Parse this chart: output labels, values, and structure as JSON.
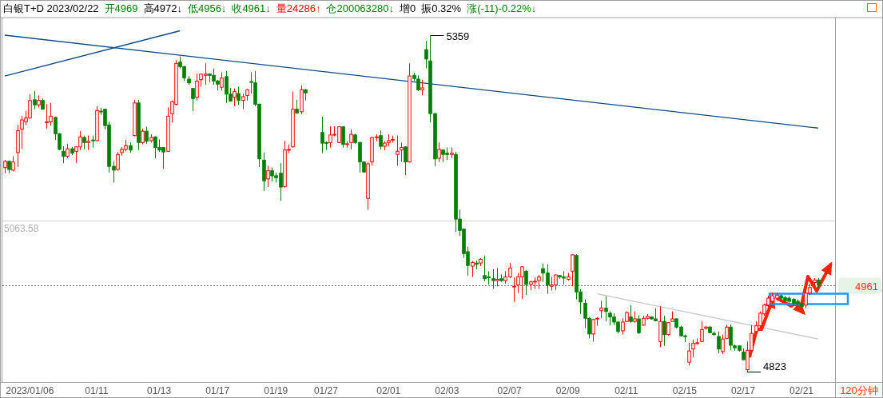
{
  "chart_data": {
    "type": "candlestick",
    "title": "白银T+D 2023/02/22",
    "categories": [
      null,
      null,
      null,
      null,
      null,
      null,
      "2023/01/06",
      null,
      null,
      null,
      null,
      null,
      null,
      null,
      null,
      null,
      null,
      null,
      null,
      null,
      null,
      null,
      "01/11",
      null,
      null,
      null,
      null,
      null,
      null,
      null,
      null,
      null,
      null,
      null,
      null,
      null,
      null,
      "01/13",
      null,
      null,
      null,
      null,
      null,
      null,
      null,
      null,
      null,
      null,
      null,
      null,
      null,
      "01/17",
      null,
      null,
      null,
      null,
      null,
      null,
      null,
      null,
      null,
      null,
      null,
      null,
      null,
      "01/19",
      null,
      null,
      null,
      null,
      null,
      null,
      null,
      null,
      null,
      null,
      null,
      "01/27",
      null,
      null,
      null,
      null,
      null,
      null,
      null,
      null,
      null,
      null,
      null,
      null,
      null,
      null,
      "02/01",
      null,
      null,
      null,
      null,
      null,
      null,
      null,
      null,
      null,
      null,
      null,
      null,
      null,
      "02/03",
      null,
      null,
      null,
      null,
      null,
      null,
      null,
      null,
      null,
      null,
      null,
      null,
      null,
      null,
      "02/07",
      null,
      null,
      null,
      null,
      null,
      null,
      null,
      null,
      null,
      null,
      null,
      null,
      null,
      "02/09",
      null,
      null,
      null,
      null,
      null,
      null,
      null,
      null,
      null,
      null,
      null,
      null,
      null,
      "02/11",
      null,
      null,
      null,
      null,
      null,
      null,
      null,
      null,
      null,
      null,
      null,
      null,
      null,
      "02/15",
      null,
      null,
      null,
      null,
      null,
      null,
      null,
      null,
      null,
      null,
      null,
      null,
      null,
      "02/17",
      null,
      null,
      null,
      null,
      null,
      null,
      null,
      null,
      null,
      null,
      null,
      null,
      null,
      "02/21",
      null,
      null,
      null,
      null
    ],
    "ohlc": [
      [
        5148,
        5160,
        5139,
        5158
      ],
      [
        5158,
        5159,
        5139,
        5145
      ],
      [
        5144,
        5166,
        5142,
        5157
      ],
      [
        5172,
        5216,
        5149,
        5207
      ],
      [
        5209,
        5230,
        5178,
        5224
      ],
      [
        5221,
        5238,
        5216,
        5227
      ],
      [
        5227,
        5265,
        5226,
        5255
      ],
      [
        5256,
        5270,
        5241,
        5248
      ],
      [
        5248,
        5263,
        5244,
        5255
      ],
      [
        5255,
        5258,
        5241,
        5241
      ],
      [
        5220,
        5249,
        5210,
        5221
      ],
      [
        5221,
        5251,
        5215,
        5230
      ],
      [
        5228,
        5229,
        5192,
        5202
      ],
      [
        5202,
        5203,
        5176,
        5177
      ],
      [
        5174,
        5182,
        5155,
        5166
      ],
      [
        5166,
        5186,
        5163,
        5178
      ],
      [
        5178,
        5181,
        5168,
        5171
      ],
      [
        5174,
        5182,
        5155,
        5181
      ],
      [
        5181,
        5206,
        5176,
        5197
      ],
      [
        5196,
        5199,
        5177,
        5188
      ],
      [
        5188,
        5199,
        5176,
        5190
      ],
      [
        5192,
        5199,
        5180,
        5191
      ],
      [
        5191,
        5246,
        5190,
        5239
      ],
      [
        5238,
        5243,
        5232,
        5237
      ],
      [
        5241,
        5242,
        5209,
        5215
      ],
      [
        5216,
        5221,
        5140,
        5150
      ],
      [
        5150,
        5158,
        5124,
        5144
      ],
      [
        5145,
        5173,
        5143,
        5169
      ],
      [
        5172,
        5181,
        5167,
        5177
      ],
      [
        5177,
        5192,
        5174,
        5183
      ],
      [
        5183,
        5188,
        5172,
        5176
      ],
      [
        5199,
        5256,
        5198,
        5251
      ],
      [
        5251,
        5256,
        5176,
        5188
      ],
      [
        5188,
        5210,
        5185,
        5206
      ],
      [
        5206,
        5213,
        5186,
        5190
      ],
      [
        5191,
        5201,
        5188,
        5196
      ],
      [
        5197,
        5198,
        5163,
        5180
      ],
      [
        5180,
        5193,
        5173,
        5176
      ],
      [
        5180,
        5181,
        5146,
        5173
      ],
      [
        5174,
        5244,
        5173,
        5230
      ],
      [
        5234,
        5255,
        5220,
        5253
      ],
      [
        5249,
        5319,
        5247,
        5314
      ],
      [
        5316,
        5325,
        5306,
        5309
      ],
      [
        5309,
        5310,
        5286,
        5291
      ],
      [
        5289,
        5294,
        5280,
        5283
      ],
      [
        5274,
        5275,
        5238,
        5258
      ],
      [
        5260,
        5298,
        5255,
        5286
      ],
      [
        5288,
        5297,
        5277,
        5297
      ],
      [
        5295,
        5314,
        5280,
        5297
      ],
      [
        5297,
        5298,
        5284,
        5295
      ],
      [
        5295,
        5306,
        5280,
        5286
      ],
      [
        5286,
        5288,
        5271,
        5281
      ],
      [
        5276,
        5300,
        5271,
        5291
      ],
      [
        5293,
        5302,
        5251,
        5265
      ],
      [
        5265,
        5275,
        5253,
        5254
      ],
      [
        5260,
        5274,
        5246,
        5269
      ],
      [
        5266,
        5277,
        5248,
        5255
      ],
      [
        5255,
        5266,
        5241,
        5261
      ],
      [
        5263,
        5273,
        5255,
        5272
      ],
      [
        5285,
        5300,
        5266,
        5284
      ],
      [
        5283,
        5302,
        5246,
        5249
      ],
      [
        5249,
        5250,
        5149,
        5162
      ],
      [
        5160,
        5172,
        5111,
        5127
      ],
      [
        5130,
        5151,
        5117,
        5143
      ],
      [
        5143,
        5148,
        5126,
        5135
      ],
      [
        5135,
        5140,
        5124,
        5132
      ],
      [
        5139,
        5155,
        5095,
        5117
      ],
      [
        5118,
        5191,
        5116,
        5176
      ],
      [
        5176,
        5185,
        5171,
        5177
      ],
      [
        5181,
        5269,
        5180,
        5241
      ],
      [
        5241,
        5256,
        5234,
        5235
      ],
      [
        5237,
        5279,
        5233,
        5272
      ],
      [
        5272,
        5273,
        5255,
        5267
      ],
      null,
      null,
      null,
      [
        5204,
        5229,
        5171,
        5187
      ],
      [
        5188,
        5190,
        5176,
        5187
      ],
      [
        5188,
        5214,
        5180,
        5200
      ],
      [
        5200,
        5214,
        5198,
        5201
      ],
      [
        5188,
        5214,
        5187,
        5213
      ],
      [
        5213,
        5214,
        5180,
        5185
      ],
      [
        5185,
        5190,
        5180,
        5186
      ],
      [
        5188,
        5209,
        5177,
        5201
      ],
      [
        5200,
        5202,
        5186,
        5188
      ],
      [
        5188,
        5189,
        5140,
        5157
      ],
      [
        5157,
        5158,
        5140,
        5141
      ],
      [
        5099,
        5157,
        5081,
        5154
      ],
      [
        5157,
        5197,
        5151,
        5196
      ],
      [
        5196,
        5201,
        5190,
        5197
      ],
      [
        5199,
        5207,
        5177,
        5182
      ],
      [
        5182,
        5190,
        5176,
        5187
      ],
      [
        5188,
        5201,
        5182,
        5191
      ],
      [
        5192,
        5199,
        5188,
        5193
      ],
      [
        5169,
        5199,
        5151,
        5174
      ],
      [
        5176,
        5188,
        5157,
        5180
      ],
      [
        5181,
        5182,
        5136,
        5157
      ],
      [
        5157,
        5314,
        5156,
        5294
      ],
      [
        5295,
        5299,
        5286,
        5290
      ],
      [
        5289,
        5295,
        5270,
        5272
      ],
      [
        5272,
        5288,
        5263,
        5275
      ],
      [
        5336,
        5350,
        5306,
        5321
      ],
      [
        5318,
        5359,
        5220,
        5234
      ],
      [
        5234,
        5235,
        5150,
        5162
      ],
      [
        5163,
        5188,
        5157,
        5177
      ],
      [
        5176,
        5177,
        5157,
        5169
      ],
      [
        5171,
        5180,
        5160,
        5169
      ],
      [
        5169,
        5180,
        5163,
        5171
      ],
      [
        5169,
        5173,
        5046,
        5066
      ],
      [
        5066,
        5081,
        5039,
        5048
      ],
      [
        5050,
        5051,
        5004,
        5011
      ],
      [
        5014,
        5022,
        4976,
        4992
      ],
      [
        4991,
        4999,
        4974,
        4997
      ],
      [
        4996,
        5000,
        4986,
        4994
      ],
      [
        4996,
        5004,
        4991,
        5002
      ],
      [
        4976,
        5008,
        4967,
        4971
      ],
      [
        4974,
        4983,
        4962,
        4973
      ],
      [
        4971,
        4986,
        4955,
        4968
      ],
      [
        4968,
        4988,
        4959,
        4970
      ],
      [
        4971,
        4978,
        4966,
        4968
      ],
      [
        4968,
        4983,
        4963,
        4974
      ],
      [
        4974,
        4996,
        4972,
        4988
      ],
      [
        4958,
        4973,
        4934,
        4959
      ],
      [
        4961,
        4980,
        4948,
        4974
      ],
      [
        4974,
        4991,
        4939,
        4990
      ],
      [
        4983,
        4985,
        4945,
        4962
      ],
      [
        4962,
        4968,
        4953,
        4966
      ],
      [
        4966,
        4973,
        4955,
        4967
      ],
      [
        4968,
        4977,
        4955,
        4974
      ],
      [
        4987,
        4995,
        4966,
        4980
      ],
      [
        4980,
        4994,
        4947,
        4961
      ],
      [
        4959,
        4974,
        4952,
        4961
      ],
      [
        4961,
        4978,
        4953,
        4977
      ],
      [
        4976,
        4977,
        4971,
        4974
      ],
      [
        4974,
        4983,
        4962,
        4972
      ],
      [
        4970,
        4980,
        4968,
        4974
      ],
      [
        4983,
        5010,
        4959,
        5009
      ],
      [
        5008,
        5010,
        4938,
        4950
      ],
      [
        4950,
        4954,
        4915,
        4934
      ],
      [
        4932,
        4938,
        4892,
        4908
      ],
      [
        4908,
        4910,
        4876,
        4883
      ],
      [
        4883,
        4907,
        4871,
        4906
      ],
      [
        4907,
        4910,
        4896,
        4908
      ],
      [
        4920,
        4936,
        4908,
        4924
      ],
      [
        4924,
        4943,
        4903,
        4919
      ],
      [
        4916,
        4919,
        4897,
        4910
      ],
      [
        4910,
        4916,
        4897,
        4902
      ],
      [
        4902,
        4903,
        4884,
        4887
      ],
      [
        4888,
        4908,
        4882,
        4902
      ],
      [
        4903,
        4919,
        4902,
        4917
      ],
      [
        4910,
        4929,
        4901,
        4903
      ],
      [
        4903,
        4919,
        4901,
        4907
      ],
      [
        4907,
        4913,
        4883,
        4885
      ],
      [
        4897,
        4912,
        4896,
        4908
      ],
      [
        4908,
        4915,
        4906,
        4911
      ],
      [
        4910,
        4911,
        4906,
        4907
      ],
      [
        4907,
        4924,
        4903,
        4904
      ],
      [
        4871,
        4927,
        4862,
        4903
      ],
      [
        4903,
        4912,
        4864,
        4882
      ],
      [
        4882,
        4902,
        4880,
        4901
      ],
      [
        4903,
        4919,
        4902,
        4907
      ],
      [
        4907,
        4908,
        4892,
        4894
      ],
      [
        4894,
        4896,
        4879,
        4880
      ],
      [
        4880,
        4882,
        4870,
        4879
      ],
      [
        4838,
        4869,
        4833,
        4856
      ],
      [
        4859,
        4874,
        4846,
        4868
      ],
      [
        4868,
        4876,
        4866,
        4869
      ],
      [
        4871,
        4903,
        4870,
        4890
      ],
      [
        4892,
        4896,
        4890,
        4894
      ],
      [
        4894,
        4896,
        4884,
        4885
      ],
      [
        4884,
        4887,
        4880,
        4882
      ],
      [
        4879,
        4887,
        4852,
        4859
      ],
      [
        4855,
        4882,
        4851,
        4875
      ],
      [
        4876,
        4897,
        4875,
        4894
      ],
      [
        4894,
        4898,
        4857,
        4865
      ],
      [
        4864,
        4866,
        4856,
        4861
      ],
      [
        4864,
        4865,
        4855,
        4857
      ],
      [
        4854,
        4860,
        4841,
        4842
      ],
      [
        4826,
        4871,
        4823,
        4857
      ],
      [
        4857,
        4897,
        4855,
        4884
      ],
      [
        4887,
        4903,
        4884,
        4896
      ],
      [
        4896,
        4919,
        4893,
        4916
      ],
      [
        4915,
        4931,
        4912,
        4929
      ],
      [
        4929,
        4944,
        4926,
        4940
      ],
      [
        4935,
        4949,
        4931,
        4944
      ],
      [
        4940,
        4949,
        4936,
        4945
      ],
      [
        4944,
        4946,
        4938,
        4940
      ],
      [
        4941,
        4944,
        4934,
        4936
      ],
      [
        4940,
        4943,
        4931,
        4935
      ],
      [
        4938,
        4940,
        4929,
        4932
      ],
      [
        4935,
        4938,
        4926,
        4931
      ],
      [
        4932,
        4936,
        4924,
        4927
      ],
      [
        4929,
        4953,
        4924,
        4948
      ],
      [
        4948,
        4963,
        4945,
        4957
      ],
      [
        4965,
        4972,
        4960,
        4969
      ],
      [
        4969,
        4972,
        4956,
        4961
      ]
    ],
    "series": [
      {
        "type": "line",
        "color": "#0a4a8a",
        "values": [
          5294,
          null,
          null,
          null,
          null,
          null,
          null,
          null,
          null,
          null,
          null,
          null,
          null,
          null,
          null,
          null,
          null,
          null,
          null,
          null,
          null,
          null,
          null,
          null,
          null,
          null,
          null,
          null,
          null,
          null,
          null,
          null,
          null,
          null,
          null,
          null,
          null,
          null,
          null,
          null,
          null,
          null,
          5366,
          null,
          null,
          null,
          null,
          null,
          null,
          null,
          null,
          null,
          null,
          null,
          null,
          null,
          null,
          null,
          null,
          null,
          null,
          null,
          null,
          null,
          null,
          null,
          null,
          null,
          null,
          null,
          null,
          null,
          null,
          null,
          null,
          null,
          null,
          null,
          null,
          null,
          null,
          null,
          null,
          null,
          null,
          null,
          null,
          null,
          null,
          null,
          null,
          null,
          null,
          null,
          null,
          null,
          null,
          null,
          null,
          null,
          null,
          null,
          null,
          null,
          null,
          null,
          null,
          null,
          null,
          null,
          null,
          null,
          null,
          null,
          null,
          null,
          null,
          null,
          null,
          null,
          null,
          null,
          null,
          null,
          null,
          null,
          null,
          null,
          null,
          null,
          null,
          null,
          null,
          null,
          null,
          null,
          null,
          null,
          null,
          null,
          null,
          null,
          null,
          null,
          null,
          null,
          null,
          null,
          null,
          null,
          null,
          null,
          null,
          null,
          null,
          null,
          null,
          null,
          null,
          null,
          null,
          null,
          null,
          null,
          null,
          null,
          null,
          null,
          null,
          null,
          null,
          null,
          null,
          null,
          null,
          null,
          null,
          null,
          null,
          null,
          null,
          null,
          null,
          null,
          null,
          null,
          null,
          null,
          null,
          null,
          null,
          null,
          null,
          null,
          null,
          null
        ]
      },
      {
        "type": "line",
        "color": "#0a4a8a",
        "values": [
          5359,
          null,
          null,
          null,
          null,
          null,
          null,
          null,
          null,
          null,
          null,
          null,
          null,
          null,
          null,
          null,
          null,
          null,
          null,
          null,
          null,
          null,
          null,
          null,
          null,
          null,
          null,
          null,
          null,
          null,
          null,
          null,
          null,
          null,
          null,
          null,
          null,
          null,
          null,
          null,
          null,
          null,
          null,
          null,
          null,
          null,
          null,
          null,
          null,
          null,
          null,
          null,
          null,
          null,
          null,
          null,
          null,
          null,
          null,
          null,
          null,
          null,
          null,
          null,
          null,
          null,
          null,
          null,
          null,
          null,
          null,
          null,
          null,
          null,
          null,
          null,
          null,
          null,
          null,
          null,
          null,
          null,
          null,
          null,
          null,
          null,
          null,
          null,
          null,
          null,
          null,
          null,
          null,
          null,
          null,
          null,
          null,
          null,
          null,
          null,
          null,
          null,
          null,
          null,
          null,
          null,
          null,
          null,
          null,
          null,
          null,
          null,
          null,
          null,
          null,
          null,
          null,
          null,
          null,
          null,
          null,
          null,
          null,
          null,
          null,
          null,
          null,
          null,
          null,
          null,
          null,
          null,
          null,
          null,
          null,
          null,
          null,
          null,
          null,
          null,
          null,
          null,
          null,
          null,
          null,
          null,
          null,
          null,
          null,
          null,
          null,
          null,
          null,
          null,
          null,
          null,
          null,
          null,
          null,
          null,
          null,
          null,
          null,
          null,
          null,
          null,
          null,
          null,
          null,
          null,
          null,
          null,
          null,
          null,
          null,
          null,
          null,
          null,
          null,
          null,
          null,
          null,
          null,
          null,
          null,
          null,
          null,
          null,
          null,
          null,
          null,
          null,
          null,
          null,
          null,
          5211
        ]
      },
      {
        "type": "line",
        "color": "#c8c8c8",
        "values": [
          null,
          null,
          null,
          null,
          null,
          null,
          null,
          null,
          null,
          null,
          null,
          null,
          null,
          null,
          null,
          null,
          null,
          null,
          null,
          null,
          null,
          null,
          null,
          null,
          null,
          null,
          null,
          null,
          null,
          null,
          null,
          null,
          null,
          null,
          null,
          null,
          null,
          null,
          null,
          null,
          null,
          null,
          null,
          null,
          null,
          null,
          null,
          null,
          null,
          null,
          null,
          null,
          null,
          null,
          null,
          null,
          null,
          null,
          null,
          null,
          null,
          null,
          null,
          null,
          null,
          null,
          null,
          null,
          null,
          null,
          null,
          null,
          null,
          null,
          null,
          null,
          null,
          null,
          null,
          null,
          null,
          null,
          null,
          null,
          null,
          null,
          null,
          null,
          null,
          null,
          null,
          null,
          null,
          null,
          null,
          null,
          null,
          null,
          null,
          null,
          null,
          null,
          null,
          null,
          null,
          null,
          null,
          null,
          null,
          null,
          null,
          null,
          null,
          null,
          null,
          null,
          null,
          null,
          null,
          null,
          null,
          null,
          null,
          null,
          null,
          null,
          null,
          null,
          null,
          null,
          null,
          null,
          null,
          null,
          null,
          null,
          null,
          null,
          null,
          null,
          null,
          null,
          4947,
          null,
          null,
          null,
          null,
          null,
          null,
          null,
          null,
          null,
          null,
          null,
          null,
          null,
          null,
          null,
          null,
          null,
          null,
          null,
          null,
          null,
          null,
          null,
          null,
          null,
          null,
          null,
          null,
          null,
          null,
          null,
          null,
          null,
          null,
          null,
          null,
          null,
          null,
          null,
          null,
          null,
          null,
          null,
          null,
          null,
          null,
          null,
          null,
          null,
          null,
          null,
          null,
          4875
        ]
      }
    ],
    "ref_lines": [
      {
        "axis": "y",
        "value": 5063.58,
        "label": "5063.58",
        "color": "#d0d0d0",
        "line_style": "solid"
      },
      {
        "axis": "y",
        "value": 4961,
        "label": "4961",
        "color": "#707070",
        "line_style": "dotted"
      }
    ],
    "annotations": [
      "开4969",
      "高4972↓",
      "低4956↓",
      "收4961↓",
      "量24286↑",
      "仓200063280↓",
      "增0",
      "振0.32%",
      "涨(-11)-0.22%↓",
      "5359",
      "4823",
      "120分钟"
    ]
  }
}
